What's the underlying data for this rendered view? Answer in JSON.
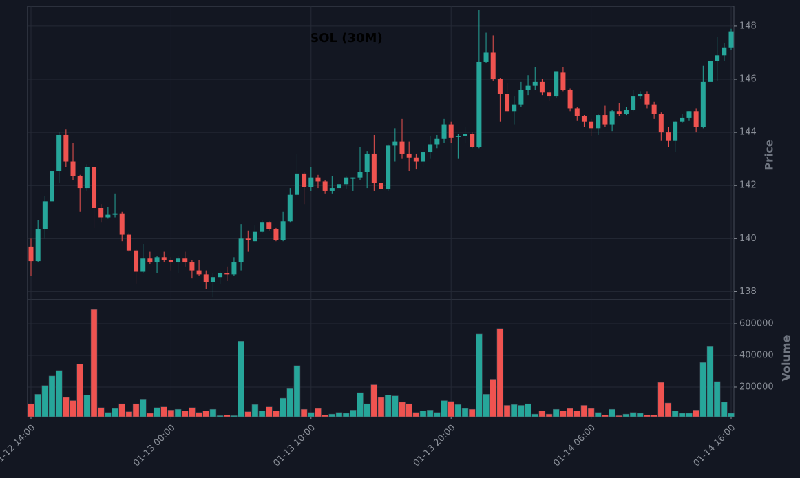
{
  "chart_data": {
    "type": "candlestick",
    "title": "SOL (30M)",
    "ylabel": "Price",
    "volume_ylabel": "Volume",
    "up_color": "#26a69a",
    "down_color": "#ef5350",
    "grid": true,
    "x": [
      "01-12 14:00",
      "01-12 14:30",
      "01-12 15:00",
      "01-12 15:30",
      "01-12 16:00",
      "01-12 16:30",
      "01-12 17:00",
      "01-12 17:30",
      "01-12 18:00",
      "01-12 18:30",
      "01-12 19:00",
      "01-12 19:30",
      "01-12 20:00",
      "01-12 20:30",
      "01-12 21:00",
      "01-12 21:30",
      "01-12 22:00",
      "01-12 22:30",
      "01-12 23:00",
      "01-12 23:30",
      "01-13 00:00",
      "01-13 00:30",
      "01-13 01:00",
      "01-13 01:30",
      "01-13 02:00",
      "01-13 02:30",
      "01-13 03:00",
      "01-13 03:30",
      "01-13 04:00",
      "01-13 04:30",
      "01-13 05:00",
      "01-13 05:30",
      "01-13 06:00",
      "01-13 06:30",
      "01-13 07:00",
      "01-13 07:30",
      "01-13 08:00",
      "01-13 08:30",
      "01-13 09:00",
      "01-13 09:30",
      "01-13 10:00",
      "01-13 10:30",
      "01-13 11:00",
      "01-13 11:30",
      "01-13 12:00",
      "01-13 12:30",
      "01-13 13:00",
      "01-13 13:30",
      "01-13 14:00",
      "01-13 14:30",
      "01-13 15:00",
      "01-13 15:30",
      "01-13 16:00",
      "01-13 16:30",
      "01-13 17:00",
      "01-13 17:30",
      "01-13 18:00",
      "01-13 18:30",
      "01-13 19:00",
      "01-13 19:30",
      "01-13 20:00",
      "01-13 20:30",
      "01-13 21:00",
      "01-13 21:30",
      "01-13 22:00",
      "01-13 22:30",
      "01-13 23:00",
      "01-13 23:30",
      "01-14 00:00",
      "01-14 00:30",
      "01-14 01:00",
      "01-14 01:30",
      "01-14 02:00",
      "01-14 02:30",
      "01-14 03:00",
      "01-14 03:30",
      "01-14 04:00",
      "01-14 04:30",
      "01-14 05:00",
      "01-14 05:30",
      "01-14 06:00",
      "01-14 06:30",
      "01-14 07:00",
      "01-14 07:30",
      "01-14 08:00",
      "01-14 08:30",
      "01-14 09:00",
      "01-14 09:30",
      "01-14 10:00",
      "01-14 10:30",
      "01-14 11:00",
      "01-14 11:30",
      "01-14 12:00",
      "01-14 12:30",
      "01-14 13:00",
      "01-14 13:30",
      "01-14 14:00",
      "01-14 14:30",
      "01-14 15:00",
      "01-14 15:30",
      "01-14 16:00"
    ],
    "xticks": [
      "01-12 14:00",
      "01-13 00:00",
      "01-13 10:00",
      "01-13 20:00",
      "01-14 06:00",
      "01-14 16:00"
    ],
    "open": [
      139.7,
      139.15,
      140.35,
      141.4,
      142.55,
      143.9,
      142.9,
      142.35,
      141.9,
      142.7,
      141.15,
      140.8,
      140.9,
      140.95,
      140.15,
      139.55,
      138.75,
      139.25,
      139.1,
      139.3,
      139.2,
      139.1,
      139.25,
      139.1,
      138.8,
      138.65,
      138.35,
      138.55,
      138.7,
      138.65,
      139.1,
      140.0,
      139.9,
      140.25,
      140.6,
      140.35,
      139.95,
      140.65,
      141.65,
      142.45,
      141.95,
      142.3,
      142.15,
      141.8,
      141.9,
      142.05,
      142.25,
      142.3,
      142.5,
      143.2,
      142.1,
      141.85,
      143.5,
      143.65,
      143.2,
      143.05,
      142.9,
      143.25,
      143.55,
      143.75,
      144.3,
      143.85,
      143.85,
      143.95,
      143.45,
      146.65,
      147.0,
      146.0,
      145.45,
      144.8,
      145.05,
      145.6,
      145.75,
      145.9,
      145.5,
      145.35,
      146.25,
      145.6,
      144.9,
      144.6,
      144.4,
      144.15,
      144.65,
      144.3,
      144.8,
      144.7,
      144.85,
      145.35,
      145.45,
      145.05,
      144.7,
      144.0,
      143.7,
      144.4,
      144.55,
      144.8,
      144.2,
      145.9,
      146.7,
      146.9,
      147.2
    ],
    "high": [
      140.0,
      140.7,
      141.6,
      142.7,
      144.0,
      144.1,
      143.6,
      142.4,
      142.8,
      142.7,
      141.3,
      141.2,
      141.7,
      141.0,
      140.2,
      139.6,
      139.8,
      139.5,
      139.35,
      139.5,
      139.3,
      139.35,
      139.5,
      139.2,
      139.2,
      138.8,
      138.7,
      138.75,
      138.95,
      139.3,
      140.55,
      140.3,
      140.5,
      140.7,
      140.65,
      140.4,
      141.0,
      141.9,
      143.2,
      142.5,
      142.7,
      142.4,
      142.2,
      142.35,
      142.2,
      142.35,
      142.3,
      143.45,
      143.3,
      143.9,
      142.3,
      143.55,
      144.15,
      144.5,
      143.65,
      143.2,
      143.5,
      143.85,
      143.9,
      144.5,
      144.4,
      143.95,
      144.2,
      144.0,
      148.6,
      147.75,
      147.65,
      146.05,
      145.85,
      145.35,
      145.9,
      146.15,
      146.45,
      146.0,
      145.6,
      146.3,
      146.45,
      145.65,
      144.95,
      144.65,
      144.5,
      144.7,
      145.0,
      144.85,
      145.1,
      144.95,
      145.6,
      145.55,
      145.55,
      145.15,
      144.75,
      144.2,
      144.45,
      144.7,
      144.8,
      144.9,
      146.5,
      147.75,
      147.6,
      147.35,
      147.9
    ],
    "low": [
      138.6,
      139.1,
      140.0,
      141.2,
      142.1,
      142.7,
      142.2,
      141.0,
      141.8,
      140.4,
      140.6,
      140.75,
      140.8,
      139.9,
      139.5,
      138.3,
      138.7,
      139.05,
      138.7,
      139.1,
      138.8,
      138.7,
      138.95,
      138.5,
      138.6,
      138.1,
      137.8,
      138.3,
      138.4,
      138.6,
      138.8,
      139.5,
      139.85,
      140.2,
      140.3,
      139.9,
      139.9,
      140.6,
      141.6,
      141.3,
      141.8,
      141.9,
      141.7,
      141.7,
      141.8,
      141.85,
      141.8,
      142.2,
      141.9,
      141.8,
      141.2,
      141.8,
      142.9,
      143.0,
      142.55,
      142.6,
      142.7,
      143.0,
      143.4,
      143.6,
      143.6,
      143.0,
      143.6,
      143.4,
      143.4,
      146.6,
      145.95,
      144.4,
      144.75,
      144.3,
      144.95,
      145.4,
      145.6,
      145.4,
      145.2,
      145.3,
      145.55,
      144.8,
      144.45,
      144.2,
      143.85,
      143.9,
      144.2,
      144.05,
      144.6,
      144.65,
      144.8,
      145.25,
      144.9,
      144.5,
      143.7,
      143.45,
      143.25,
      144.35,
      144.45,
      144.0,
      144.15,
      145.55,
      145.95,
      146.7,
      147.1
    ],
    "close": [
      139.15,
      140.35,
      141.4,
      142.55,
      143.9,
      142.9,
      142.35,
      141.9,
      142.7,
      141.15,
      140.8,
      140.9,
      140.95,
      140.15,
      139.55,
      138.75,
      139.25,
      139.1,
      139.3,
      139.2,
      139.1,
      139.25,
      139.1,
      138.8,
      138.65,
      138.35,
      138.55,
      138.7,
      138.65,
      139.1,
      140.0,
      139.95,
      140.25,
      140.6,
      140.35,
      139.95,
      140.65,
      141.65,
      142.45,
      141.95,
      142.3,
      142.15,
      141.8,
      141.9,
      142.05,
      142.3,
      142.3,
      142.5,
      143.2,
      142.1,
      141.85,
      143.5,
      143.65,
      143.2,
      143.05,
      142.9,
      143.25,
      143.55,
      143.75,
      144.3,
      143.8,
      143.85,
      143.95,
      143.45,
      146.65,
      147.0,
      146.0,
      145.45,
      144.8,
      145.05,
      145.6,
      145.75,
      145.9,
      145.5,
      145.35,
      146.3,
      145.6,
      144.9,
      144.6,
      144.4,
      144.15,
      144.65,
      144.3,
      144.8,
      144.7,
      144.85,
      145.35,
      145.45,
      145.05,
      144.7,
      144.0,
      143.7,
      144.4,
      144.55,
      144.8,
      144.2,
      145.9,
      146.7,
      146.9,
      147.2,
      147.8
    ],
    "volume": [
      95000,
      155000,
      210000,
      270000,
      305000,
      135000,
      115000,
      345000,
      150000,
      690000,
      70000,
      40000,
      65000,
      95000,
      45000,
      95000,
      120000,
      35000,
      70000,
      75000,
      55000,
      60000,
      50000,
      70000,
      40000,
      50000,
      60000,
      20000,
      25000,
      20000,
      490000,
      45000,
      90000,
      50000,
      75000,
      50000,
      130000,
      190000,
      335000,
      60000,
      40000,
      65000,
      25000,
      30000,
      40000,
      35000,
      55000,
      165000,
      95000,
      215000,
      135000,
      150000,
      145000,
      105000,
      95000,
      40000,
      50000,
      55000,
      40000,
      115000,
      110000,
      90000,
      65000,
      60000,
      535000,
      155000,
      250000,
      570000,
      85000,
      90000,
      85000,
      95000,
      30000,
      50000,
      30000,
      60000,
      50000,
      65000,
      50000,
      85000,
      65000,
      40000,
      25000,
      60000,
      20000,
      30000,
      40000,
      35000,
      25000,
      25000,
      230000,
      100000,
      50000,
      35000,
      35000,
      55000,
      355000,
      455000,
      235000,
      105000,
      35000
    ],
    "ylim": [
      137.7,
      148.75
    ],
    "yticks": [
      138,
      140,
      142,
      144,
      146,
      148
    ],
    "volume_ylim": [
      13000,
      752000
    ],
    "volume_yticks": [
      200000,
      400000,
      600000
    ]
  }
}
